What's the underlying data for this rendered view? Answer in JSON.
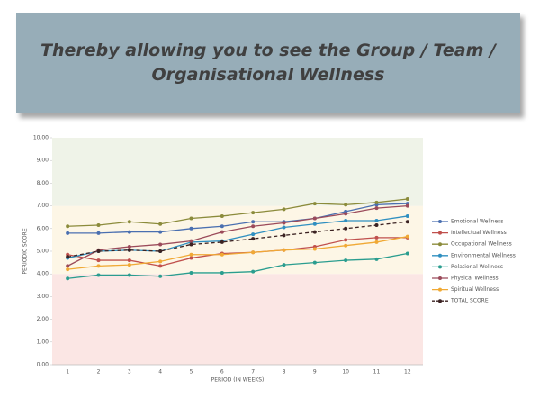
{
  "header": {
    "title_lines": [
      "Thereby allowing you to see the Group / Team /",
      "Organisational Wellness"
    ]
  },
  "chart_data": {
    "type": "line",
    "x_label": "PERIOD (IN WEEKS)",
    "y_label": "PERIODIC SCORE",
    "categories": [
      "1",
      "2",
      "3",
      "4",
      "5",
      "6",
      "7",
      "8",
      "9",
      "10",
      "11",
      "12"
    ],
    "ylim": [
      0,
      10
    ],
    "yticks": [
      {
        "value": 0,
        "label": "0.00"
      },
      {
        "value": 1,
        "label": "1.00"
      },
      {
        "value": 2,
        "label": "2.00"
      },
      {
        "value": 3,
        "label": "3.00"
      },
      {
        "value": 4,
        "label": "4.00"
      },
      {
        "value": 5,
        "label": "5.00"
      },
      {
        "value": 6,
        "label": "6.00"
      },
      {
        "value": 7,
        "label": "7.00"
      },
      {
        "value": 8,
        "label": "8.00"
      },
      {
        "value": 9,
        "label": "9.00"
      },
      {
        "value": 10,
        "label": "10.00"
      }
    ],
    "bands": [
      {
        "from": 0,
        "to": 4,
        "color": "#fbe6e4"
      },
      {
        "from": 4,
        "to": 7,
        "color": "#fdf6e6"
      },
      {
        "from": 7,
        "to": 10,
        "color": "#eff3e8"
      }
    ],
    "legend": "right",
    "series": [
      {
        "name": "Emotional Wellness",
        "color": "#4a6fb0",
        "values": [
          5.8,
          5.8,
          5.85,
          5.85,
          6.0,
          6.1,
          6.3,
          6.3,
          6.45,
          6.75,
          7.05,
          7.1
        ]
      },
      {
        "name": "Intellectual Wellness",
        "color": "#c0504d",
        "values": [
          4.85,
          4.6,
          4.6,
          4.35,
          4.7,
          4.9,
          4.95,
          5.05,
          5.2,
          5.5,
          5.6,
          5.6
        ]
      },
      {
        "name": "Occupational Wellness",
        "color": "#8b8b3b",
        "values": [
          6.1,
          6.15,
          6.3,
          6.2,
          6.45,
          6.55,
          6.7,
          6.85,
          7.1,
          7.05,
          7.15,
          7.3
        ]
      },
      {
        "name": "Environmental Wellness",
        "color": "#2f8fc0",
        "values": [
          4.7,
          5.0,
          5.05,
          5.0,
          5.4,
          5.45,
          5.75,
          6.05,
          6.2,
          6.35,
          6.35,
          6.55
        ]
      },
      {
        "name": "Relational Wellness",
        "color": "#2a9d8f",
        "values": [
          3.8,
          3.95,
          3.95,
          3.9,
          4.05,
          4.05,
          4.1,
          4.4,
          4.5,
          4.6,
          4.65,
          4.9
        ]
      },
      {
        "name": "Physical Wellness",
        "color": "#9b4a5a",
        "values": [
          4.35,
          5.05,
          5.2,
          5.3,
          5.45,
          5.85,
          6.1,
          6.25,
          6.45,
          6.65,
          6.9,
          7.0
        ]
      },
      {
        "name": "Spiritual Wellness",
        "color": "#f0a935",
        "values": [
          4.2,
          4.35,
          4.4,
          4.55,
          4.85,
          4.85,
          4.95,
          5.05,
          5.1,
          5.25,
          5.4,
          5.65
        ]
      },
      {
        "name": "TOTAL SCORE",
        "color": "#3b2222",
        "dash": true,
        "values": [
          4.75,
          5.0,
          5.05,
          5.0,
          5.3,
          5.4,
          5.55,
          5.7,
          5.85,
          6.0,
          6.15,
          6.3
        ]
      }
    ]
  }
}
